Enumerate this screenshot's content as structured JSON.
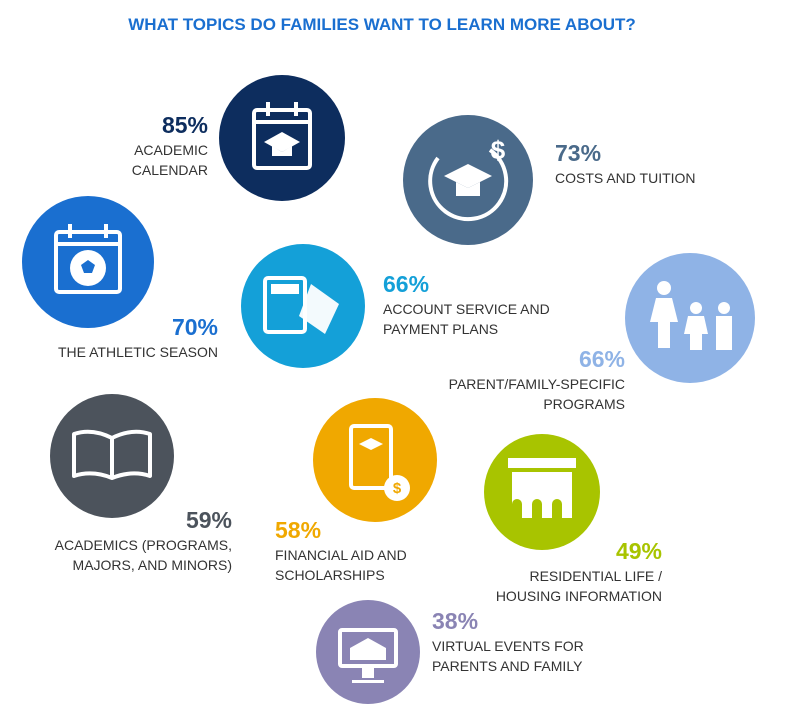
{
  "header": {
    "title": "WHAT TOPICS DO FAMILIES WANT TO LEARN MORE ABOUT?"
  },
  "items": [
    {
      "percent": "85%",
      "label": [
        "ACADEMIC",
        "CALENDAR"
      ],
      "color": "#0d2d5e"
    },
    {
      "percent": "73%",
      "label": [
        "COSTS AND TUITION"
      ],
      "color": "#4a6a8a"
    },
    {
      "percent": "70%",
      "label": [
        "THE ATHLETIC SEASON"
      ],
      "color": "#1a6fd0"
    },
    {
      "percent": "66%",
      "label": [
        "ACCOUNT SERVICE AND",
        "PAYMENT PLANS"
      ],
      "color": "#14a0d8"
    },
    {
      "percent": "66%",
      "label": [
        "PARENT/FAMILY-SPECIFIC",
        "PROGRAMS"
      ],
      "color": "#8fb3e6"
    },
    {
      "percent": "59%",
      "label": [
        "ACADEMICS (PROGRAMS,",
        "MAJORS, AND MINORS)"
      ],
      "color": "#4c535c"
    },
    {
      "percent": "58%",
      "label": [
        "FINANCIAL AID AND",
        "SCHOLARSHIPS"
      ],
      "color": "#f0a800"
    },
    {
      "percent": "49%",
      "label": [
        "RESIDENTIAL LIFE /",
        "HOUSING INFORMATION"
      ],
      "color": "#a8c400"
    },
    {
      "percent": "38%",
      "label": [
        "VIRTUAL EVENTS FOR",
        "PARENTS AND FAMILY"
      ],
      "color": "#8a84b4"
    }
  ]
}
